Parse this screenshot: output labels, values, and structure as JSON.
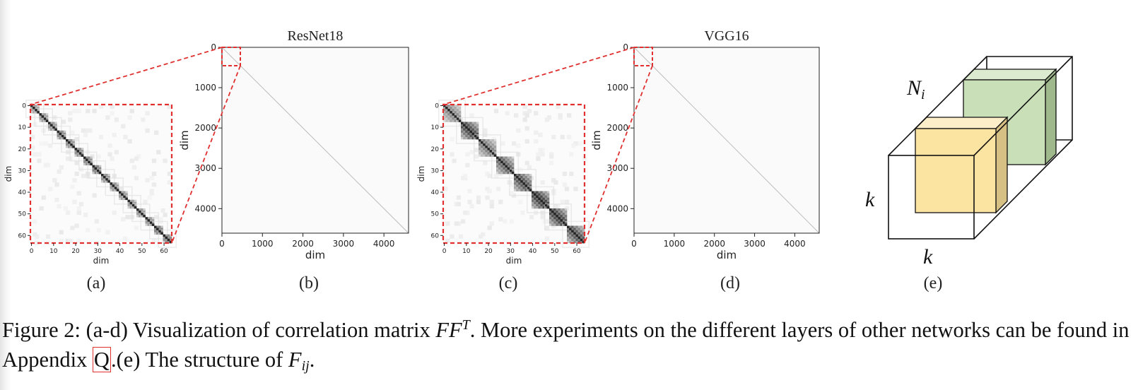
{
  "figure": {
    "panels": [
      {
        "id": "a",
        "label": "(a)"
      },
      {
        "id": "b",
        "label": "(b)",
        "title": "ResNet18"
      },
      {
        "id": "c",
        "label": "(c)"
      },
      {
        "id": "d",
        "label": "(d)",
        "title": "VGG16"
      },
      {
        "id": "e",
        "label": "(e)"
      }
    ],
    "cube": {
      "label_n": "N",
      "label_n_sub": "i",
      "label_k_side": "k",
      "label_k_bottom": "k"
    }
  },
  "caption": {
    "prefix": "Figure 2: (a-d) Visualization of correlation matrix ",
    "math_ff": "FF",
    "math_sup": "T",
    "after_math": ". More experiments on the different layers of other networks can be found in Appendix ",
    "ref": "Q",
    "after_ref": ".(e) The structure of ",
    "math_f": "F",
    "math_f_sub": "ij",
    "suffix": "."
  },
  "chart_data": [
    {
      "type": "heatmap",
      "panel": "a",
      "title": "",
      "xlabel": "dim",
      "ylabel": "dim",
      "xlim": [
        0,
        63
      ],
      "ylim": [
        0,
        63
      ],
      "xticks": [
        "0",
        "10",
        "20",
        "30",
        "40",
        "50",
        "60"
      ],
      "yticks": [
        "0",
        "10",
        "20",
        "30",
        "40",
        "50",
        "60"
      ],
      "blocks": [
        {
          "start": 0,
          "end": 4,
          "intensity": 0.55
        },
        {
          "start": 4,
          "end": 8,
          "intensity": 0.6
        },
        {
          "start": 8,
          "end": 12,
          "intensity": 0.62
        },
        {
          "start": 12,
          "end": 16,
          "intensity": 0.7
        },
        {
          "start": 16,
          "end": 20,
          "intensity": 0.66
        },
        {
          "start": 20,
          "end": 24,
          "intensity": 0.68
        },
        {
          "start": 24,
          "end": 28,
          "intensity": 0.7
        },
        {
          "start": 28,
          "end": 32,
          "intensity": 0.75
        },
        {
          "start": 32,
          "end": 36,
          "intensity": 0.65
        },
        {
          "start": 36,
          "end": 40,
          "intensity": 0.62
        },
        {
          "start": 40,
          "end": 44,
          "intensity": 0.6
        },
        {
          "start": 44,
          "end": 48,
          "intensity": 0.58
        },
        {
          "start": 48,
          "end": 52,
          "intensity": 0.6
        },
        {
          "start": 52,
          "end": 56,
          "intensity": 0.62
        },
        {
          "start": 56,
          "end": 60,
          "intensity": 0.75
        },
        {
          "start": 60,
          "end": 64,
          "intensity": 0.7
        }
      ]
    },
    {
      "type": "heatmap",
      "panel": "b",
      "title": "ResNet18",
      "xlabel": "dim",
      "ylabel": "dim",
      "xlim": [
        0,
        4608
      ],
      "ylim": [
        0,
        4608
      ],
      "xticks": [
        "0",
        "1000",
        "2000",
        "3000",
        "4000"
      ],
      "yticks": [
        "0",
        "1000",
        "2000",
        "3000",
        "4000"
      ],
      "diagonal": true,
      "zoom_region": [
        0,
        64
      ]
    },
    {
      "type": "heatmap",
      "panel": "c",
      "title": "",
      "xlabel": "dim",
      "ylabel": "dim",
      "xlim": [
        0,
        63
      ],
      "ylim": [
        0,
        63
      ],
      "xticks": [
        "0",
        "10",
        "20",
        "30",
        "40",
        "50",
        "60"
      ],
      "yticks": [
        "0",
        "10",
        "20",
        "30",
        "40",
        "50",
        "60"
      ],
      "blocks": [
        {
          "start": 0,
          "end": 8,
          "intensity": 0.55
        },
        {
          "start": 8,
          "end": 16,
          "intensity": 0.82
        },
        {
          "start": 16,
          "end": 24,
          "intensity": 0.6
        },
        {
          "start": 24,
          "end": 32,
          "intensity": 0.72
        },
        {
          "start": 32,
          "end": 40,
          "intensity": 0.78
        },
        {
          "start": 40,
          "end": 48,
          "intensity": 0.88
        },
        {
          "start": 48,
          "end": 56,
          "intensity": 0.85
        },
        {
          "start": 56,
          "end": 64,
          "intensity": 0.78
        }
      ]
    },
    {
      "type": "heatmap",
      "panel": "d",
      "title": "VGG16",
      "xlabel": "dim",
      "ylabel": "dim",
      "xlim": [
        0,
        4608
      ],
      "ylim": [
        0,
        4608
      ],
      "xticks": [
        "0",
        "1000",
        "2000",
        "3000",
        "4000"
      ],
      "yticks": [
        "0",
        "1000",
        "2000",
        "3000",
        "4000"
      ],
      "diagonal": true,
      "zoom_region": [
        0,
        64
      ]
    }
  ]
}
